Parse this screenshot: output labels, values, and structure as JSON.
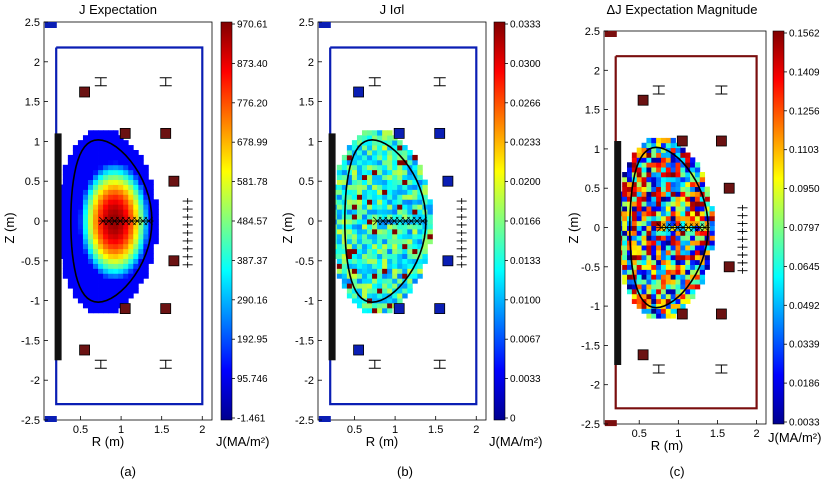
{
  "chart_data": [
    {
      "type": "heatmap",
      "title": "J Expectation",
      "xlabel": "R (m)",
      "ylabel": "Z (m)",
      "colorbar_label": "J(MA/m²)",
      "caption": "(a)",
      "xlim": [
        0.05,
        2.12
      ],
      "ylim": [
        -2.5,
        2.5
      ],
      "xticks": [
        "0.5",
        "1",
        "1.5",
        "2"
      ],
      "yticks": [
        "2.5",
        "2",
        "1.5",
        "1",
        "0.5",
        "0",
        "-0.5",
        "-1",
        "-1.5",
        "-2",
        "-2.5"
      ],
      "colorbar_ticks": [
        "970.61",
        "873.40",
        "776.20",
        "678.99",
        "581.78",
        "484.57",
        "387.37",
        "290.16",
        "192.95",
        "95.746",
        "-1.461"
      ],
      "colorbar_range": [
        -1.461,
        970.61
      ],
      "field": "peaked",
      "colormap": "jet"
    },
    {
      "type": "heatmap",
      "title": "J Iσl",
      "xlabel": "R (m)",
      "ylabel": "Z (m)",
      "colorbar_label": "J(MA/m²)",
      "caption": "(b)",
      "xlim": [
        0.05,
        2.12
      ],
      "ylim": [
        -2.5,
        2.5
      ],
      "xticks": [
        "0.5",
        "1",
        "1.5",
        "2"
      ],
      "yticks": [
        "2.5",
        "2",
        "1.5",
        "1",
        "0.5",
        "0",
        "-0.5",
        "-1",
        "-1.5",
        "-2",
        "-2.5"
      ],
      "colorbar_ticks": [
        "0.0333",
        "0.0300",
        "0.0266",
        "0.0233",
        "0.0200",
        "0.0166",
        "0.0133",
        "0.0100",
        "0.0067",
        "0.0033",
        "0"
      ],
      "colorbar_range": [
        0,
        0.0333
      ],
      "field": "noise-low",
      "colormap": "jet"
    },
    {
      "type": "heatmap",
      "title": "ΔJ Expectation Magnitude",
      "xlabel": "R (m)",
      "ylabel": "Z (m)",
      "colorbar_label": "J(MA/m²)",
      "caption": "(c)",
      "xlim": [
        0.05,
        2.12
      ],
      "ylim": [
        -2.5,
        2.5
      ],
      "xticks": [
        "0.5",
        "1",
        "1.5",
        "2"
      ],
      "yticks": [
        "2.5",
        "2",
        "1.5",
        "1",
        "0.5",
        "0",
        "-0.5",
        "-1",
        "-1.5",
        "-2",
        "-2.5"
      ],
      "colorbar_ticks": [
        "0.1562",
        "0.1409",
        "0.1256",
        "0.1103",
        "0.0950",
        "0.0797",
        "0.0645",
        "0.0492",
        "0.0339",
        "0.0186",
        "0.0033"
      ],
      "colorbar_range": [
        0.0033,
        0.1562
      ],
      "field": "noise-high",
      "colormap": "jet"
    }
  ],
  "colors": {
    "wall_a": "#0a1eb4",
    "wall_b": "#0a1eb4",
    "wall_c": "#7a0e0e",
    "coil_a": "#6b1212",
    "coil_b": "#0a1eb4",
    "coil_c": "#6b1212",
    "axes": "#000000"
  }
}
